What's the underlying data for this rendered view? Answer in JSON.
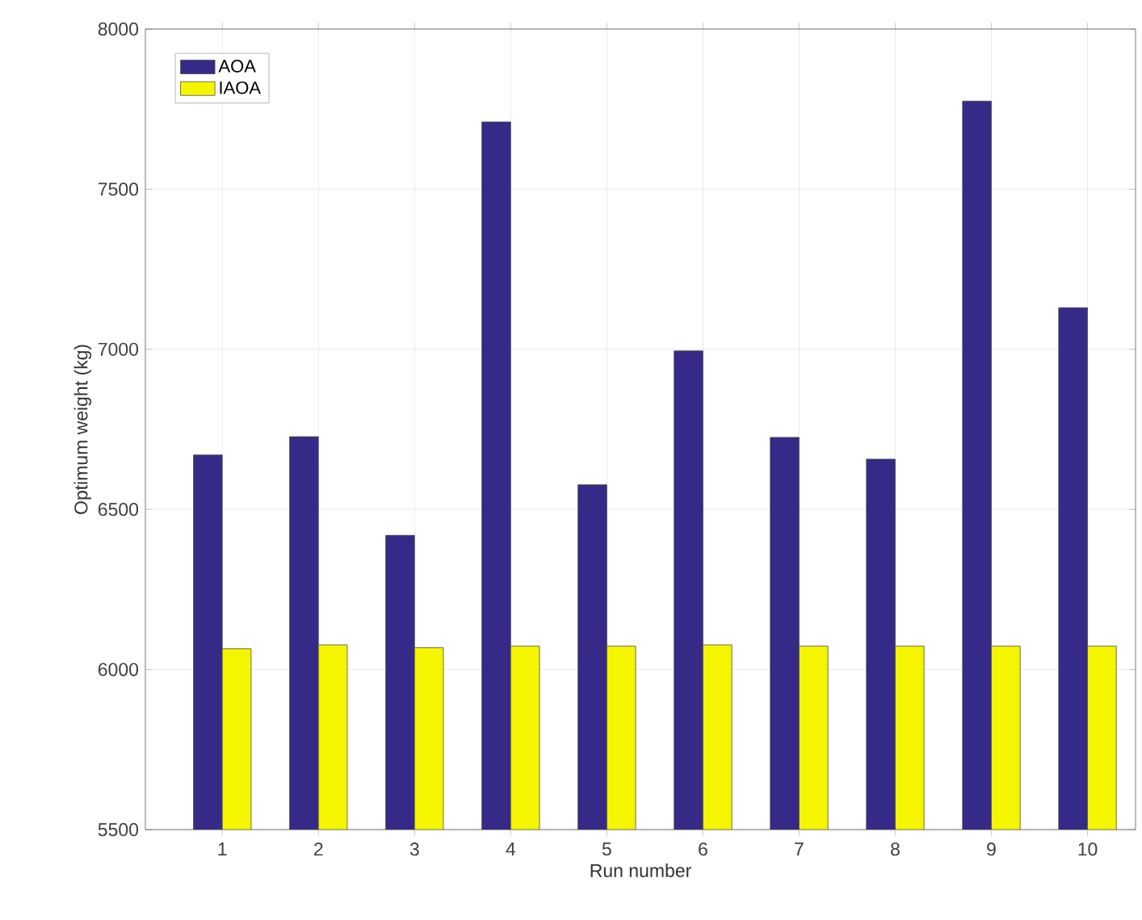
{
  "chart_data": {
    "type": "bar",
    "xlabel": "Run number",
    "ylabel": "Optimum weight (kg)",
    "categories": [
      "1",
      "2",
      "3",
      "4",
      "5",
      "6",
      "7",
      "8",
      "9",
      "10"
    ],
    "series": [
      {
        "name": "AOA",
        "color": "#352a87",
        "values": [
          6670,
          6727,
          6419,
          7710,
          6577,
          6995,
          6725,
          6657,
          7775,
          7130
        ]
      },
      {
        "name": "IAOA",
        "color": "#f5f500",
        "values": [
          6065,
          6077,
          6068,
          6073,
          6073,
          6077,
          6073,
          6073,
          6073,
          6073
        ]
      }
    ],
    "ylim": [
      5500,
      8000
    ],
    "yticks": [
      5500,
      6000,
      6500,
      7000,
      7500,
      8000
    ],
    "grid": true,
    "legend": "top left"
  }
}
